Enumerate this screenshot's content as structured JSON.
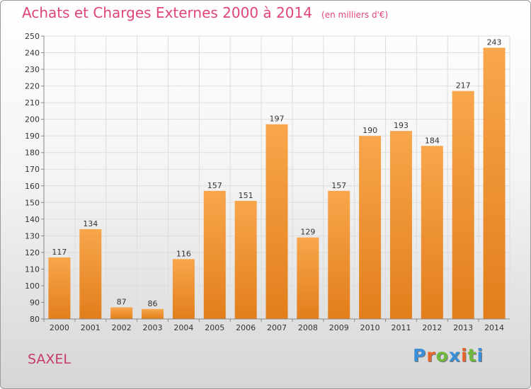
{
  "title": "Achats et Charges Externes 2000 à 2014",
  "unit": "(en milliers d'€)",
  "commune": "SAXEL",
  "logo": {
    "text": "Proxiti",
    "colors": [
      "#3a8fd8",
      "#e8662a",
      "#6fb83e",
      "#3a8fd8",
      "#e8662a",
      "#6fb83e",
      "#3a8fd8"
    ]
  },
  "chart_data": {
    "type": "bar",
    "title": "Achats et Charges Externes 2000 à 2014",
    "xlabel": "",
    "ylabel": "",
    "categories": [
      "2000",
      "2001",
      "2002",
      "2003",
      "2004",
      "2005",
      "2006",
      "2007",
      "2008",
      "2009",
      "2010",
      "2011",
      "2012",
      "2013",
      "2014"
    ],
    "values": [
      117,
      134,
      87,
      86,
      116,
      157,
      151,
      197,
      129,
      157,
      190,
      193,
      184,
      217,
      243
    ],
    "ylim": [
      80,
      250
    ],
    "yticks": [
      80,
      90,
      100,
      110,
      120,
      130,
      140,
      150,
      160,
      170,
      180,
      190,
      200,
      210,
      220,
      230,
      240,
      250
    ],
    "grid": true,
    "colors": {
      "bar_light": "#f8a64c",
      "bar_dark": "#e27e1b",
      "grid": "#dddddd",
      "axis": "#888888"
    }
  }
}
